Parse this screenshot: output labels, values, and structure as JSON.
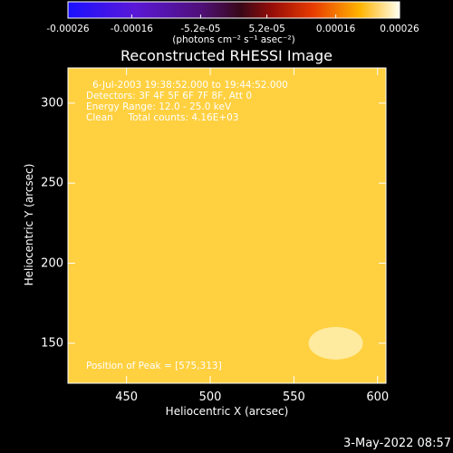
{
  "colorbar": {
    "ticks": [
      {
        "label": "-0.00026",
        "v": -0.00026
      },
      {
        "label": "-0.00016",
        "v": -0.00016
      },
      {
        "label": "-5.2e-05",
        "v": -5.2e-05
      },
      {
        "label": "5.2e-05",
        "v": 5.2e-05
      },
      {
        "label": "0.00016",
        "v": 0.00016
      },
      {
        "label": "0.00026",
        "v": 0.00026
      }
    ],
    "range": [
      -0.00026,
      0.00026
    ],
    "units": "(photons cm⁻² s⁻¹ asec⁻²)"
  },
  "chart_data": {
    "type": "heatmap",
    "title": "Reconstructed RHESSI Image",
    "xlabel": "Heliocentric X (arcsec)",
    "ylabel": "Heliocentric Y (arcsec)",
    "xlim": [
      415,
      605
    ],
    "ylim": [
      125,
      322
    ],
    "xticks": [
      450,
      500,
      550,
      600
    ],
    "yticks": [
      150,
      200,
      250,
      300
    ],
    "colormap": "blue-purple-red-yellow-white",
    "value_range": [
      -0.00026,
      0.00026
    ],
    "grid": false,
    "peak": [
      575,
      313
    ],
    "annotations": [
      "6-Jul-2003 19:38:52.000 to 19:44:52.000",
      "Detectors: 3F 4F 5F 6F 7F 8F, Att 0",
      "Energy Range: 12.0 - 25.0 keV",
      "Clean     Total counts: 4.16E+03"
    ],
    "peak_label": "Position of Peak = [575,313]"
  },
  "footer": {
    "date": "3-May-2022 08:57"
  },
  "colors": {
    "background": "#000000",
    "text": "#ffffff"
  }
}
